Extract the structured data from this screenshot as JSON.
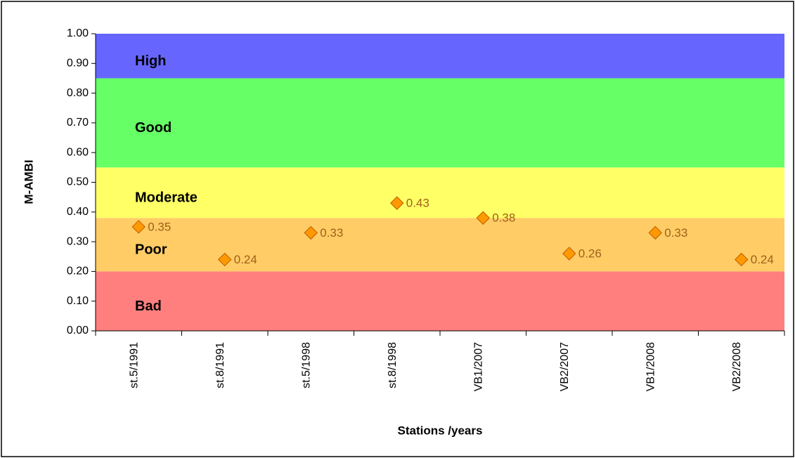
{
  "chart_data": {
    "type": "scatter",
    "y_label": "M-AMBI",
    "x_label": "Stations /years",
    "categories": [
      "st.5/1991",
      "st.8/1991",
      "st.5/1998",
      "st.8/1998",
      "VB1/2007",
      "VB2/2007",
      "VB1/2008",
      "VB2/2008"
    ],
    "values": [
      0.35,
      0.24,
      0.33,
      0.43,
      0.38,
      0.26,
      0.33,
      0.24
    ],
    "color": "#ff9900",
    "ylim": [
      0,
      1
    ],
    "yticks": [
      {
        "value": 0,
        "label": "0.00"
      },
      {
        "value": 0.1,
        "label": "0.10"
      },
      {
        "value": 0.2,
        "label": "0.20"
      },
      {
        "value": 0.3,
        "label": "0.30"
      },
      {
        "value": 0.4,
        "label": "0.40"
      },
      {
        "value": 0.5,
        "label": "0.50"
      },
      {
        "value": 0.6,
        "label": "0.60"
      },
      {
        "value": 0.7,
        "label": "0.70"
      },
      {
        "value": 0.8,
        "label": "0.80"
      },
      {
        "value": 0.9,
        "label": "0.90"
      },
      {
        "value": 1,
        "label": "1.00"
      }
    ],
    "bands": [
      {
        "name": "Bad",
        "from": 0,
        "to": 0.2,
        "color": "#ff7f7f"
      },
      {
        "name": "Poor",
        "from": 0.2,
        "to": 0.38,
        "color": "#ffcc66"
      },
      {
        "name": "Moderate",
        "from": 0.38,
        "to": 0.55,
        "color": "#ffff66"
      },
      {
        "name": "Good",
        "from": 0.55,
        "to": 0.85,
        "color": "#66ff66"
      },
      {
        "name": "High",
        "from": 0.85,
        "to": 1,
        "color": "#6666ff"
      }
    ]
  }
}
